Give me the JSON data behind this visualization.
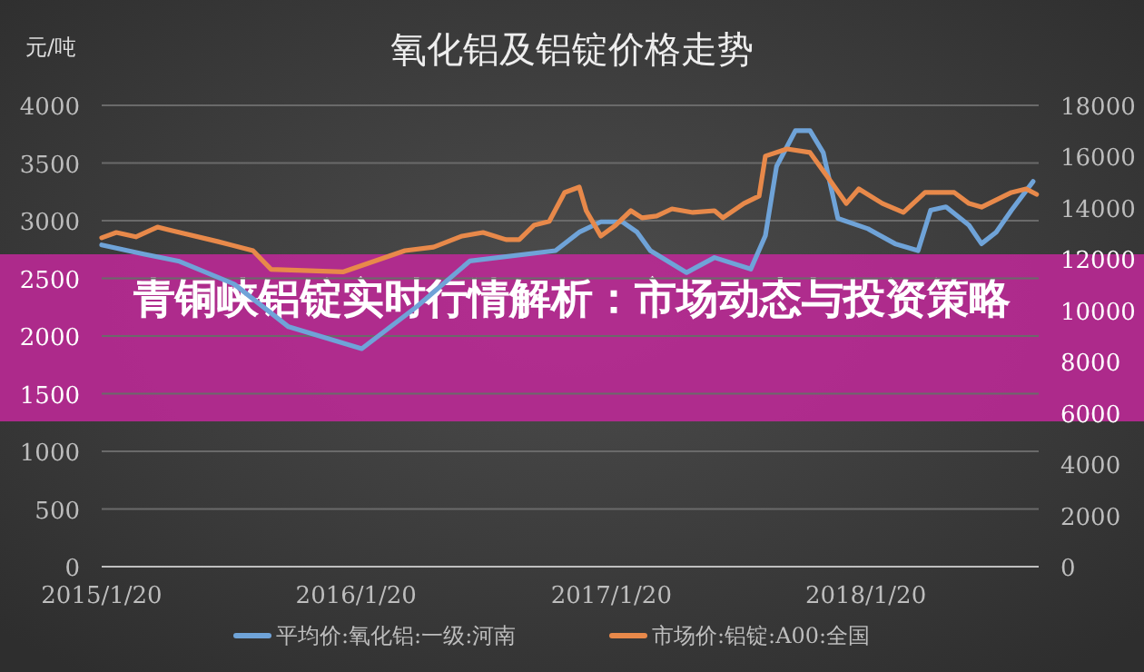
{
  "chart_data": {
    "type": "line",
    "title": "氧化铝及铝锭价格走势",
    "ylabel": "元/吨",
    "annotations": [
      "青铜峡铝锭实时行情解析：市场动态与投资策略"
    ],
    "xlim": [
      "2015-01-20",
      "2018-09-25"
    ],
    "xticks": [
      {
        "value": "2015-01-20",
        "label": "2015/1/20"
      },
      {
        "value": "2016-01-20",
        "label": "2016/1/20"
      },
      {
        "value": "2017-01-20",
        "label": "2017/1/20"
      },
      {
        "value": "2018-01-20",
        "label": "2018/1/20"
      }
    ],
    "ylim": [
      0,
      4000
    ],
    "yticks": [
      0,
      500,
      1000,
      1500,
      2000,
      2500,
      3000,
      3500,
      4000
    ],
    "y2lim": [
      0,
      18000
    ],
    "y2ticks": [
      0,
      2000,
      4000,
      6000,
      8000,
      10000,
      12000,
      14000,
      16000,
      18000
    ],
    "grid": "y",
    "legend": "bottom",
    "marker": "none",
    "line_style": "solid",
    "series": [
      {
        "name": "平均价:氧化铝:一级:河南",
        "color": "#6fa3d8",
        "x": [
          "2015-01-20",
          "2015-03-21",
          "2015-05-10",
          "2015-07-29",
          "2015-10-15",
          "2016-01-28",
          "2016-04-15",
          "2016-07-01",
          "2016-11-01",
          "2016-12-05",
          "2017-01-05",
          "2017-02-05",
          "2017-02-26",
          "2017-03-17",
          "2017-05-08",
          "2017-06-17",
          "2017-08-08",
          "2017-08-29",
          "2017-09-14",
          "2017-10-11",
          "2017-11-01",
          "2017-11-20",
          "2017-12-11",
          "2018-01-23",
          "2018-03-03",
          "2018-04-05",
          "2018-04-23",
          "2018-05-15",
          "2018-06-17",
          "2018-07-05",
          "2018-07-26",
          "2018-08-17",
          "2018-09-17"
        ],
        "values": [
          2790,
          2710,
          2650,
          2450,
          2080,
          1890,
          2250,
          2650,
          2740,
          2900,
          2990,
          2990,
          2900,
          2740,
          2550,
          2680,
          2580,
          2870,
          3470,
          3780,
          3780,
          3590,
          3020,
          2930,
          2800,
          2740,
          3090,
          3120,
          2960,
          2800,
          2900,
          3090,
          3340
        ]
      },
      {
        "name": "市场价:铝锭:A00:全国",
        "color": "#e8894a",
        "axis": "y2",
        "x": [
          "2015-01-20",
          "2015-02-10",
          "2015-03-10",
          "2015-04-10",
          "2015-05-01",
          "2015-07-05",
          "2015-08-25",
          "2015-09-20",
          "2016-01-01",
          "2016-03-30",
          "2016-05-10",
          "2016-06-20",
          "2016-07-20",
          "2016-08-22",
          "2016-09-10",
          "2016-10-01",
          "2016-10-23",
          "2016-11-14",
          "2016-12-05",
          "2016-12-15",
          "2017-01-05",
          "2017-01-26",
          "2017-02-17",
          "2017-03-05",
          "2017-03-26",
          "2017-04-17",
          "2017-05-17",
          "2017-06-17",
          "2017-06-29",
          "2017-07-29",
          "2017-08-20",
          "2017-08-29",
          "2017-09-29",
          "2017-11-01",
          "2017-12-01",
          "2017-12-23",
          "2018-01-10",
          "2018-02-13",
          "2018-03-15",
          "2018-04-15",
          "2018-05-27",
          "2018-06-17",
          "2018-07-05",
          "2018-08-17",
          "2018-09-07",
          "2018-09-22"
        ],
        "values": [
          12830,
          13040,
          12870,
          13250,
          13110,
          12690,
          12330,
          11600,
          11500,
          12330,
          12470,
          12900,
          13040,
          12760,
          12760,
          13320,
          13470,
          14600,
          14810,
          13890,
          12900,
          13320,
          13890,
          13610,
          13680,
          13960,
          13820,
          13890,
          13610,
          14170,
          14460,
          16020,
          16300,
          16160,
          15020,
          14170,
          14740,
          14170,
          13820,
          14600,
          14600,
          14170,
          14030,
          14600,
          14740,
          14530
        ]
      }
    ]
  }
}
